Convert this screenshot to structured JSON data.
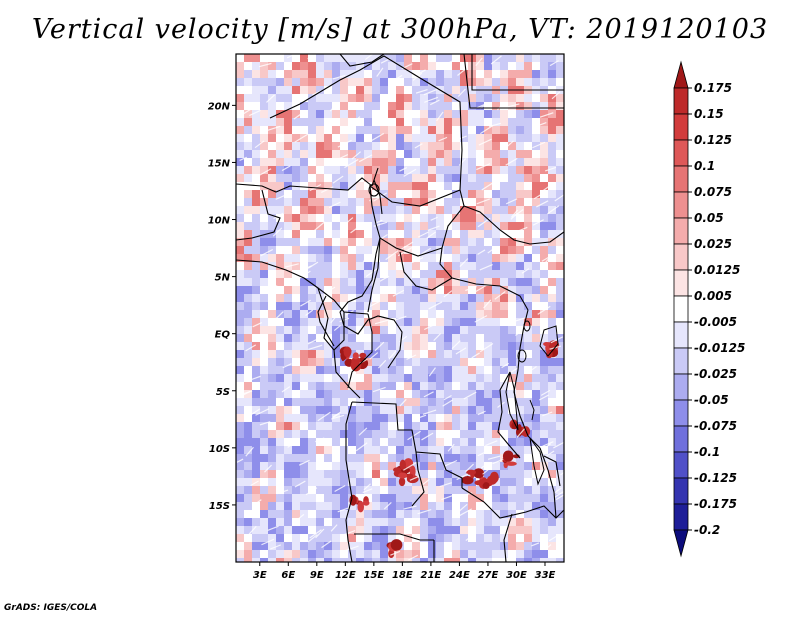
{
  "title": "Vertical velocity [m/s] at 300hPa, VT: 2019120103",
  "credit": "GrADS: IGES/COLA",
  "map": {
    "variable": "Vertical velocity",
    "units": "m/s",
    "level": "300hPa",
    "valid_time": "2019120103",
    "lat_labels": [
      "20N",
      "15N",
      "10N",
      "5N",
      "EQ",
      "5S",
      "10S",
      "15S"
    ],
    "lat_values": [
      20,
      15,
      10,
      5,
      0,
      -5,
      -10,
      -15
    ],
    "lon_labels": [
      "3E",
      "6E",
      "9E",
      "12E",
      "15E",
      "18E",
      "21E",
      "24E",
      "27E",
      "30E",
      "33E"
    ],
    "lon_values": [
      3,
      6,
      9,
      12,
      15,
      18,
      21,
      24,
      27,
      30,
      33
    ],
    "lat_range": [
      -20,
      24.5
    ],
    "lon_range": [
      0.5,
      35
    ]
  },
  "colorbar": {
    "labels": [
      "0.175",
      "0.15",
      "0.125",
      "0.1",
      "0.075",
      "0.05",
      "0.025",
      "0.0125",
      "0.005",
      "-0.005",
      "-0.0125",
      "-0.025",
      "-0.05",
      "-0.075",
      "-0.1",
      "-0.125",
      "-0.175",
      "-0.2"
    ],
    "colors": [
      "#a01818",
      "#be2a2a",
      "#d23c3c",
      "#de5858",
      "#e67474",
      "#ee9090",
      "#f4acac",
      "#f8c8c8",
      "#fce4e4",
      "#ffffff",
      "#e6e6fc",
      "#cacaf6",
      "#acacf0",
      "#8e8eea",
      "#7070dc",
      "#5050c8",
      "#3434b0",
      "#1e1e98",
      "#0c0c7c"
    ]
  }
}
